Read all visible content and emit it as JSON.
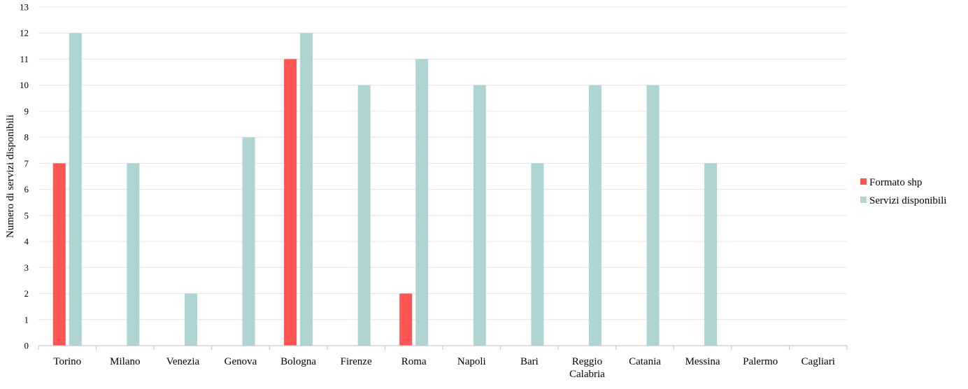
{
  "chart_data": {
    "type": "bar",
    "categories": [
      "Torino",
      "Milano",
      "Venezia",
      "Genova",
      "Bologna",
      "Firenze",
      "Roma",
      "Napoli",
      "Bari",
      [
        "Reggio",
        "Calabria"
      ],
      "Catania",
      "Messina",
      "Palermo",
      "Cagliari"
    ],
    "series": [
      {
        "name": "Formato shp",
        "color": "#ff5555",
        "values": [
          7,
          0,
          0,
          0,
          11,
          0,
          2,
          0,
          0,
          0,
          0,
          0,
          0,
          0
        ]
      },
      {
        "name": "Servizi disponibili",
        "color": "#aed5d3",
        "values": [
          12,
          7,
          2,
          8,
          12,
          10,
          11,
          10,
          7,
          10,
          10,
          7,
          0,
          0
        ]
      }
    ],
    "ylabel": "Numero di servizi disponibili",
    "xlabel": "",
    "ylim": [
      0,
      13
    ],
    "ytick_step": 1,
    "grid": true,
    "legend_position": "right"
  }
}
